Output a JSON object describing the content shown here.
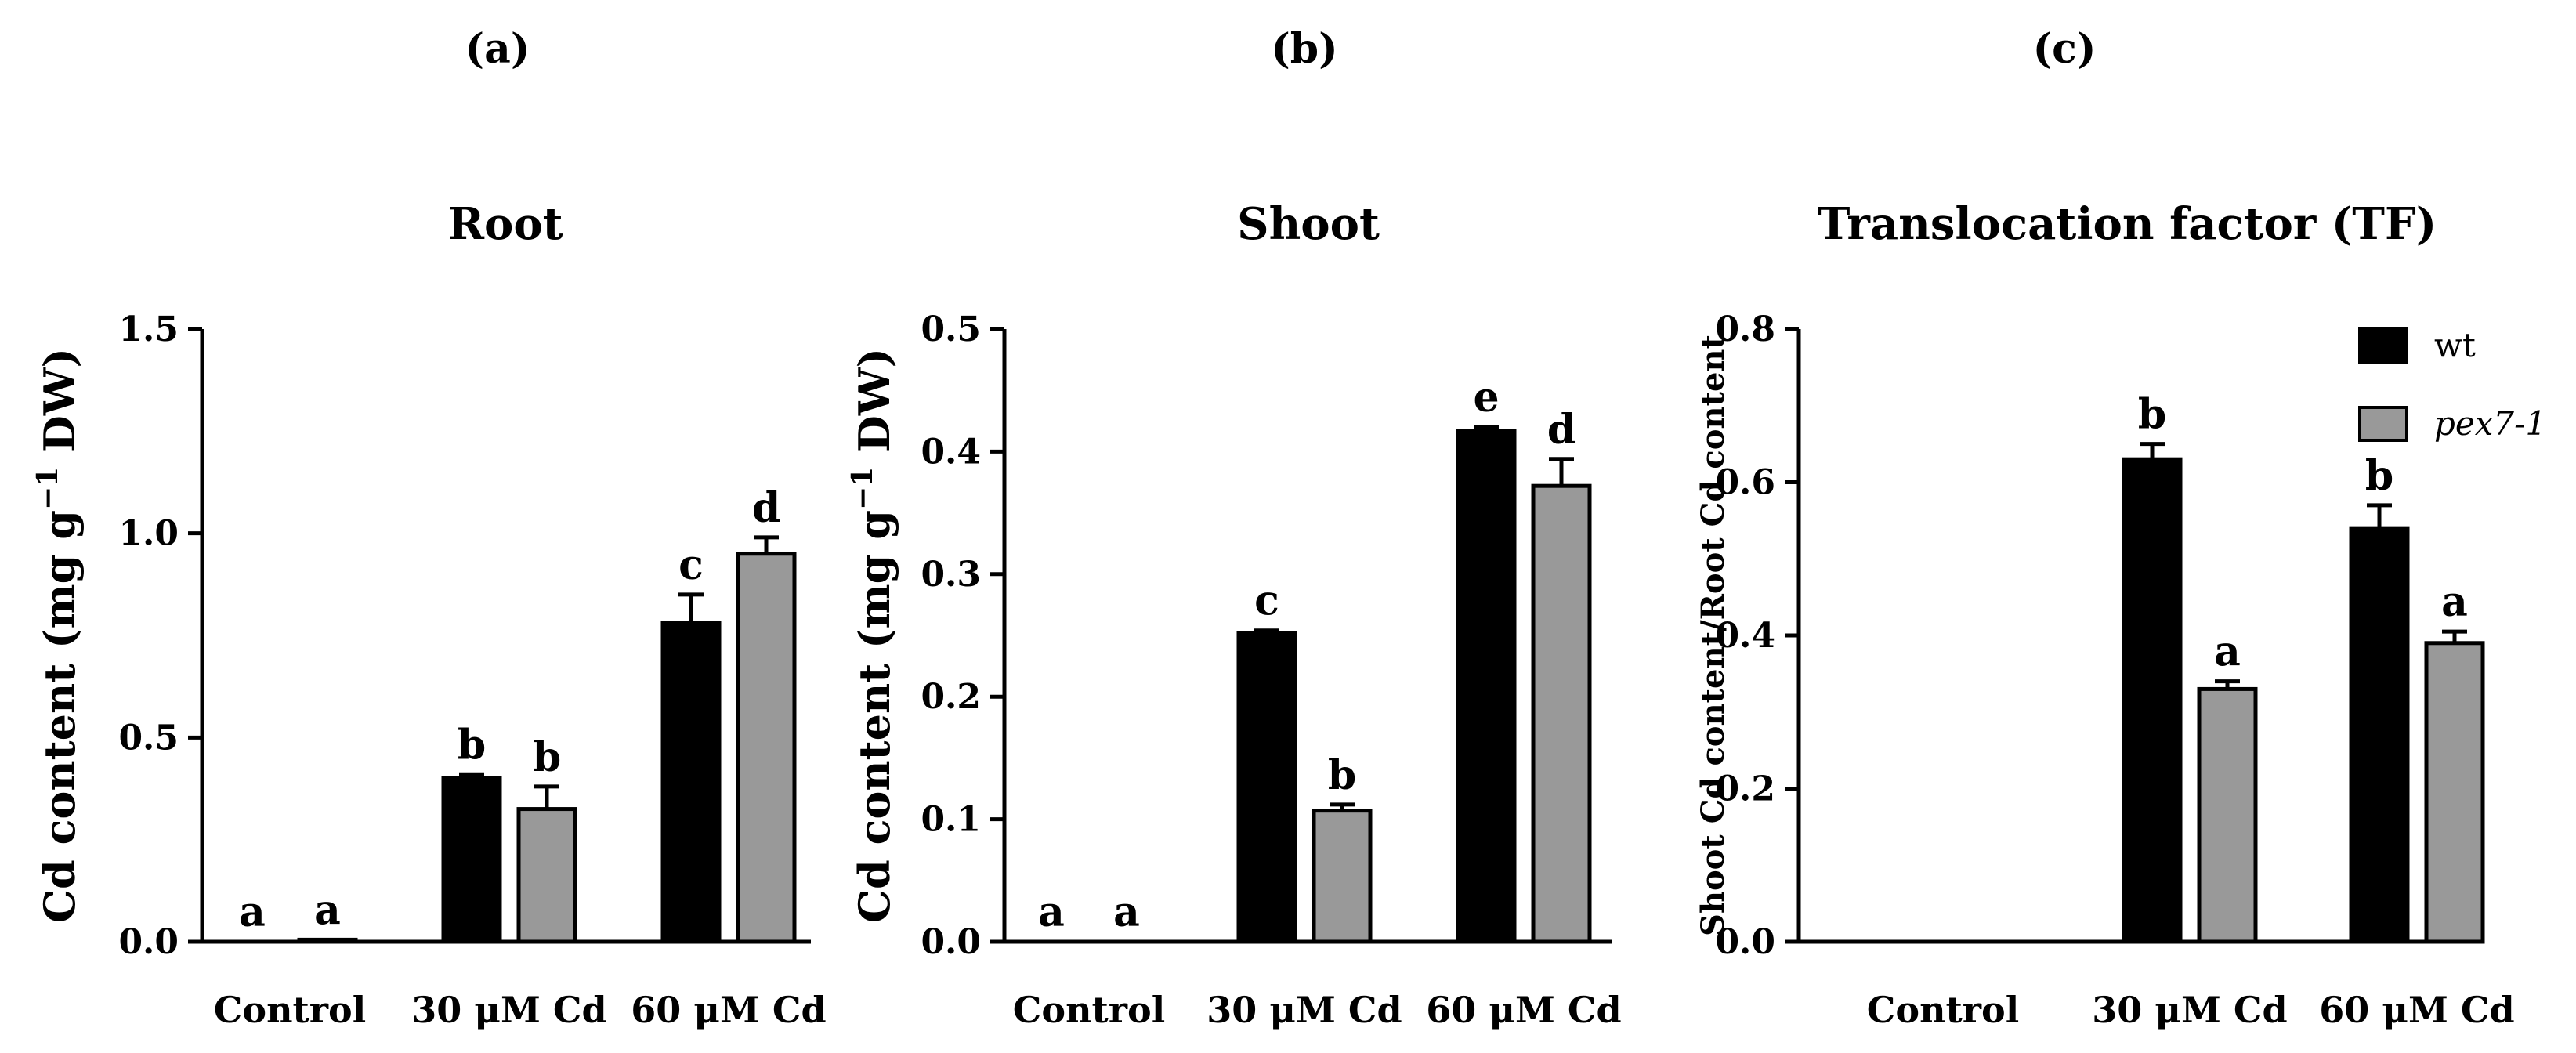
{
  "chart_data": [
    {
      "panel_label": "(a)",
      "type": "bar",
      "title": "Root",
      "ylabel": "Cd content (mg g",
      "ylabel_sup": "−1",
      "ylabel_suffix": " DW)",
      "xlabel": "",
      "categories": [
        "Control",
        "30 μM Cd",
        "60 μM Cd"
      ],
      "ylim": [
        0,
        1.5
      ],
      "yticks": [
        0.0,
        0.5,
        1.0,
        1.5
      ],
      "ytick_labels": [
        "0.0",
        "0.5",
        "1.0",
        "1.5"
      ],
      "series": [
        {
          "name": "wt",
          "color": "#000000",
          "values": [
            0.0,
            0.4,
            0.78
          ],
          "errors": [
            0.0,
            0.01,
            0.07
          ],
          "letters": [
            "a",
            "b",
            "c"
          ]
        },
        {
          "name": "pex7-1",
          "color": "#999999",
          "values": [
            0.005,
            0.325,
            0.95
          ],
          "errors": [
            0.0,
            0.055,
            0.04
          ],
          "letters": [
            "a",
            "b",
            "d"
          ]
        }
      ]
    },
    {
      "panel_label": "(b)",
      "type": "bar",
      "title": "Shoot",
      "ylabel": "Cd content (mg g",
      "ylabel_sup": "−1",
      "ylabel_suffix": " DW)",
      "xlabel": "",
      "categories": [
        "Control",
        "30 μM Cd",
        "60 μM Cd"
      ],
      "ylim": [
        0,
        0.5
      ],
      "yticks": [
        0.0,
        0.1,
        0.2,
        0.3,
        0.4,
        0.5
      ],
      "ytick_labels": [
        "0.0",
        "0.1",
        "0.2",
        "0.3",
        "0.4",
        "0.5"
      ],
      "series": [
        {
          "name": "wt",
          "color": "#000000",
          "values": [
            0.0,
            0.252,
            0.417
          ],
          "errors": [
            0.0,
            0.002,
            0.003
          ],
          "letters": [
            "a",
            "c",
            "e"
          ]
        },
        {
          "name": "pex7-1",
          "color": "#999999",
          "values": [
            0.0,
            0.107,
            0.372
          ],
          "errors": [
            0.0,
            0.005,
            0.022
          ],
          "letters": [
            "a",
            "b",
            "d"
          ]
        }
      ]
    },
    {
      "panel_label": "(c)",
      "type": "bar",
      "title": "Translocation factor (TF)",
      "ylabel": "Shoot Cd content/Root Cd content",
      "ylabel_sup": "",
      "ylabel_suffix": "",
      "xlabel": "",
      "categories": [
        "Control",
        "30 μM Cd",
        "60 μM Cd"
      ],
      "ylim": [
        0,
        0.8
      ],
      "yticks": [
        0.0,
        0.2,
        0.4,
        0.6,
        0.8
      ],
      "ytick_labels": [
        "0.0",
        "0.2",
        "0.4",
        "0.6",
        "0.8"
      ],
      "legend": [
        "wt",
        "pex7-1"
      ],
      "legend_position": "top-right",
      "series": [
        {
          "name": "wt",
          "color": "#000000",
          "values": [
            0.0,
            0.63,
            0.54
          ],
          "errors": [
            0.0,
            0.02,
            0.03
          ],
          "letters": [
            "",
            "b",
            "b"
          ]
        },
        {
          "name": "pex7-1",
          "color": "#999999",
          "values": [
            0.0,
            0.33,
            0.39
          ],
          "errors": [
            0.0,
            0.01,
            0.015
          ],
          "letters": [
            "",
            "a",
            "a"
          ]
        }
      ]
    }
  ]
}
